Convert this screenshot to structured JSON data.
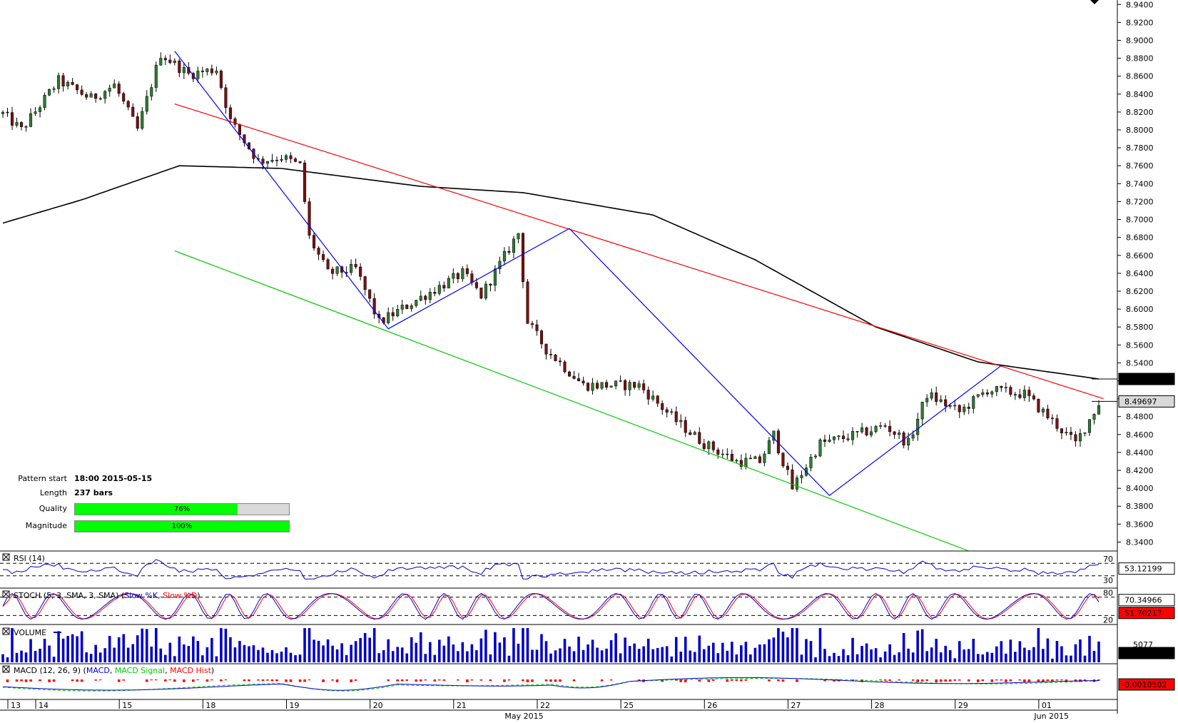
{
  "header": {
    "corner_icon": "caret-down-icon"
  },
  "chart_data": {
    "type": "candlestick",
    "price_axis": {
      "ticks": [
        "8.9400",
        "8.9200",
        "8.9000",
        "8.8800",
        "8.8600",
        "8.8400",
        "8.8200",
        "8.8000",
        "8.7800",
        "8.7600",
        "8.7400",
        "8.7200",
        "8.7000",
        "8.6800",
        "8.6600",
        "8.6400",
        "8.6200",
        "8.6000",
        "8.5800",
        "8.5600",
        "8.5400",
        "8.5200",
        "8.5000",
        "8.4800",
        "8.4600",
        "8.4400",
        "8.4200",
        "8.4000",
        "8.3800",
        "8.3600",
        "8.3400"
      ],
      "range": [
        8.33,
        8.945
      ]
    },
    "price_labels": {
      "ma_value": "8.52199",
      "last_price": "8.49697"
    },
    "waypoints": [
      {
        "t": 0,
        "p": 8.818
      },
      {
        "t": 4,
        "p": 8.8
      },
      {
        "t": 12,
        "p": 8.855
      },
      {
        "t": 19,
        "p": 8.835
      },
      {
        "t": 24,
        "p": 8.85
      },
      {
        "t": 29,
        "p": 8.8
      },
      {
        "t": 34,
        "p": 8.885
      },
      {
        "t": 40,
        "p": 8.862
      },
      {
        "t": 46,
        "p": 8.868
      },
      {
        "t": 49,
        "p": 8.81
      },
      {
        "t": 55,
        "p": 8.765
      },
      {
        "t": 60,
        "p": 8.77
      },
      {
        "t": 64,
        "p": 8.76
      },
      {
        "t": 66,
        "p": 8.68
      },
      {
        "t": 70,
        "p": 8.64
      },
      {
        "t": 76,
        "p": 8.645
      },
      {
        "t": 81,
        "p": 8.585
      },
      {
        "t": 89,
        "p": 8.61
      },
      {
        "t": 99,
        "p": 8.64
      },
      {
        "t": 103,
        "p": 8.615
      },
      {
        "t": 111,
        "p": 8.685
      },
      {
        "t": 113,
        "p": 8.585
      },
      {
        "t": 117,
        "p": 8.555
      },
      {
        "t": 125,
        "p": 8.515
      },
      {
        "t": 137,
        "p": 8.515
      },
      {
        "t": 145,
        "p": 8.475
      },
      {
        "t": 151,
        "p": 8.45
      },
      {
        "t": 158,
        "p": 8.43
      },
      {
        "t": 163,
        "p": 8.43
      },
      {
        "t": 166,
        "p": 8.46
      },
      {
        "t": 170,
        "p": 8.4
      },
      {
        "t": 176,
        "p": 8.45
      },
      {
        "t": 184,
        "p": 8.46
      },
      {
        "t": 190,
        "p": 8.47
      },
      {
        "t": 195,
        "p": 8.45
      },
      {
        "t": 199,
        "p": 8.505
      },
      {
        "t": 206,
        "p": 8.485
      },
      {
        "t": 212,
        "p": 8.51
      },
      {
        "t": 220,
        "p": 8.505
      },
      {
        "t": 226,
        "p": 8.475
      },
      {
        "t": 231,
        "p": 8.45
      },
      {
        "t": 236,
        "p": 8.495
      }
    ],
    "bars": 237,
    "moving_average": [
      {
        "t": 0,
        "p": 8.696
      },
      {
        "t": 17,
        "p": 8.722
      },
      {
        "t": 38,
        "p": 8.76
      },
      {
        "t": 60,
        "p": 8.757
      },
      {
        "t": 90,
        "p": 8.737
      },
      {
        "t": 112,
        "p": 8.73
      },
      {
        "t": 140,
        "p": 8.705
      },
      {
        "t": 162,
        "p": 8.655
      },
      {
        "t": 188,
        "p": 8.58
      },
      {
        "t": 210,
        "p": 8.541
      },
      {
        "t": 236,
        "p": 8.522
      }
    ],
    "pattern_lines": {
      "resistance": {
        "from": {
          "t": 37,
          "p": 8.829
        },
        "to": {
          "t": 237,
          "p": 8.5
        },
        "color": "#ff0000"
      },
      "support": {
        "from": {
          "t": 37,
          "p": 8.665
        },
        "to": {
          "t": 208,
          "p": 8.33
        },
        "color": "#00cc00"
      },
      "zigzag": [
        {
          "t": 37,
          "p": 8.888
        },
        {
          "t": 83,
          "p": 8.578
        },
        {
          "t": 122,
          "p": 8.69
        },
        {
          "t": 178,
          "p": 8.392
        },
        {
          "t": 215,
          "p": 8.537
        }
      ],
      "zigzag_color": "#0000ff"
    },
    "time_axis": {
      "labels": [
        {
          "t": 0,
          "text": "13"
        },
        {
          "t": 6,
          "text": "14"
        },
        {
          "t": 24,
          "text": "15"
        },
        {
          "t": 42,
          "text": "18"
        },
        {
          "t": 60,
          "text": "19"
        },
        {
          "t": 78,
          "text": "20"
        },
        {
          "t": 96,
          "text": "21"
        },
        {
          "t": 114,
          "text": "22"
        },
        {
          "t": 132,
          "text": "25"
        },
        {
          "t": 150,
          "text": "26"
        },
        {
          "t": 168,
          "text": "27"
        },
        {
          "t": 186,
          "text": "28"
        },
        {
          "t": 204,
          "text": "29"
        },
        {
          "t": 222,
          "text": "01"
        }
      ],
      "period_labels": [
        {
          "t": 109,
          "text": "May 2015"
        },
        {
          "t": 223,
          "text": "Jun 2015"
        }
      ]
    },
    "indicators": {
      "rsi": {
        "title": "RSI (14)",
        "levels": [
          "70",
          "30"
        ],
        "value": "53.12199",
        "color": "#0000cc"
      },
      "stoch": {
        "title": "STOCH (5, 3, SMA, 3, SMA)",
        "k_label": "Slow %K",
        "d_label": "Slow %D",
        "levels": [
          "80",
          "20"
        ],
        "value_k": "70.34966",
        "value_d": "51.70217",
        "k_color": "#0000cc",
        "d_color": "#ff0000"
      },
      "volume": {
        "title": "VOLUME",
        "scale": "5077",
        "value": "2927.75",
        "color": "#0000cc"
      },
      "macd": {
        "title": "MACD (12, 26, 9)",
        "macd_label": "MACD",
        "signal_label": "MACD Signal",
        "hist_label": "MACD Hist",
        "value": "-0.0010502",
        "macd_color": "#0000cc",
        "signal_color": "#00cc00",
        "hist_color": "#ff0000"
      }
    }
  },
  "pattern_info": {
    "start_label": "Pattern start",
    "start_value": "18:00 2015-05-15",
    "length_label": "Length",
    "length_value": "237 bars",
    "quality_label": "Quality",
    "quality_value": "76%",
    "quality_fraction": 0.76,
    "magnitude_label": "Magnitude",
    "magnitude_value": "100%",
    "magnitude_fraction": 1.0
  }
}
